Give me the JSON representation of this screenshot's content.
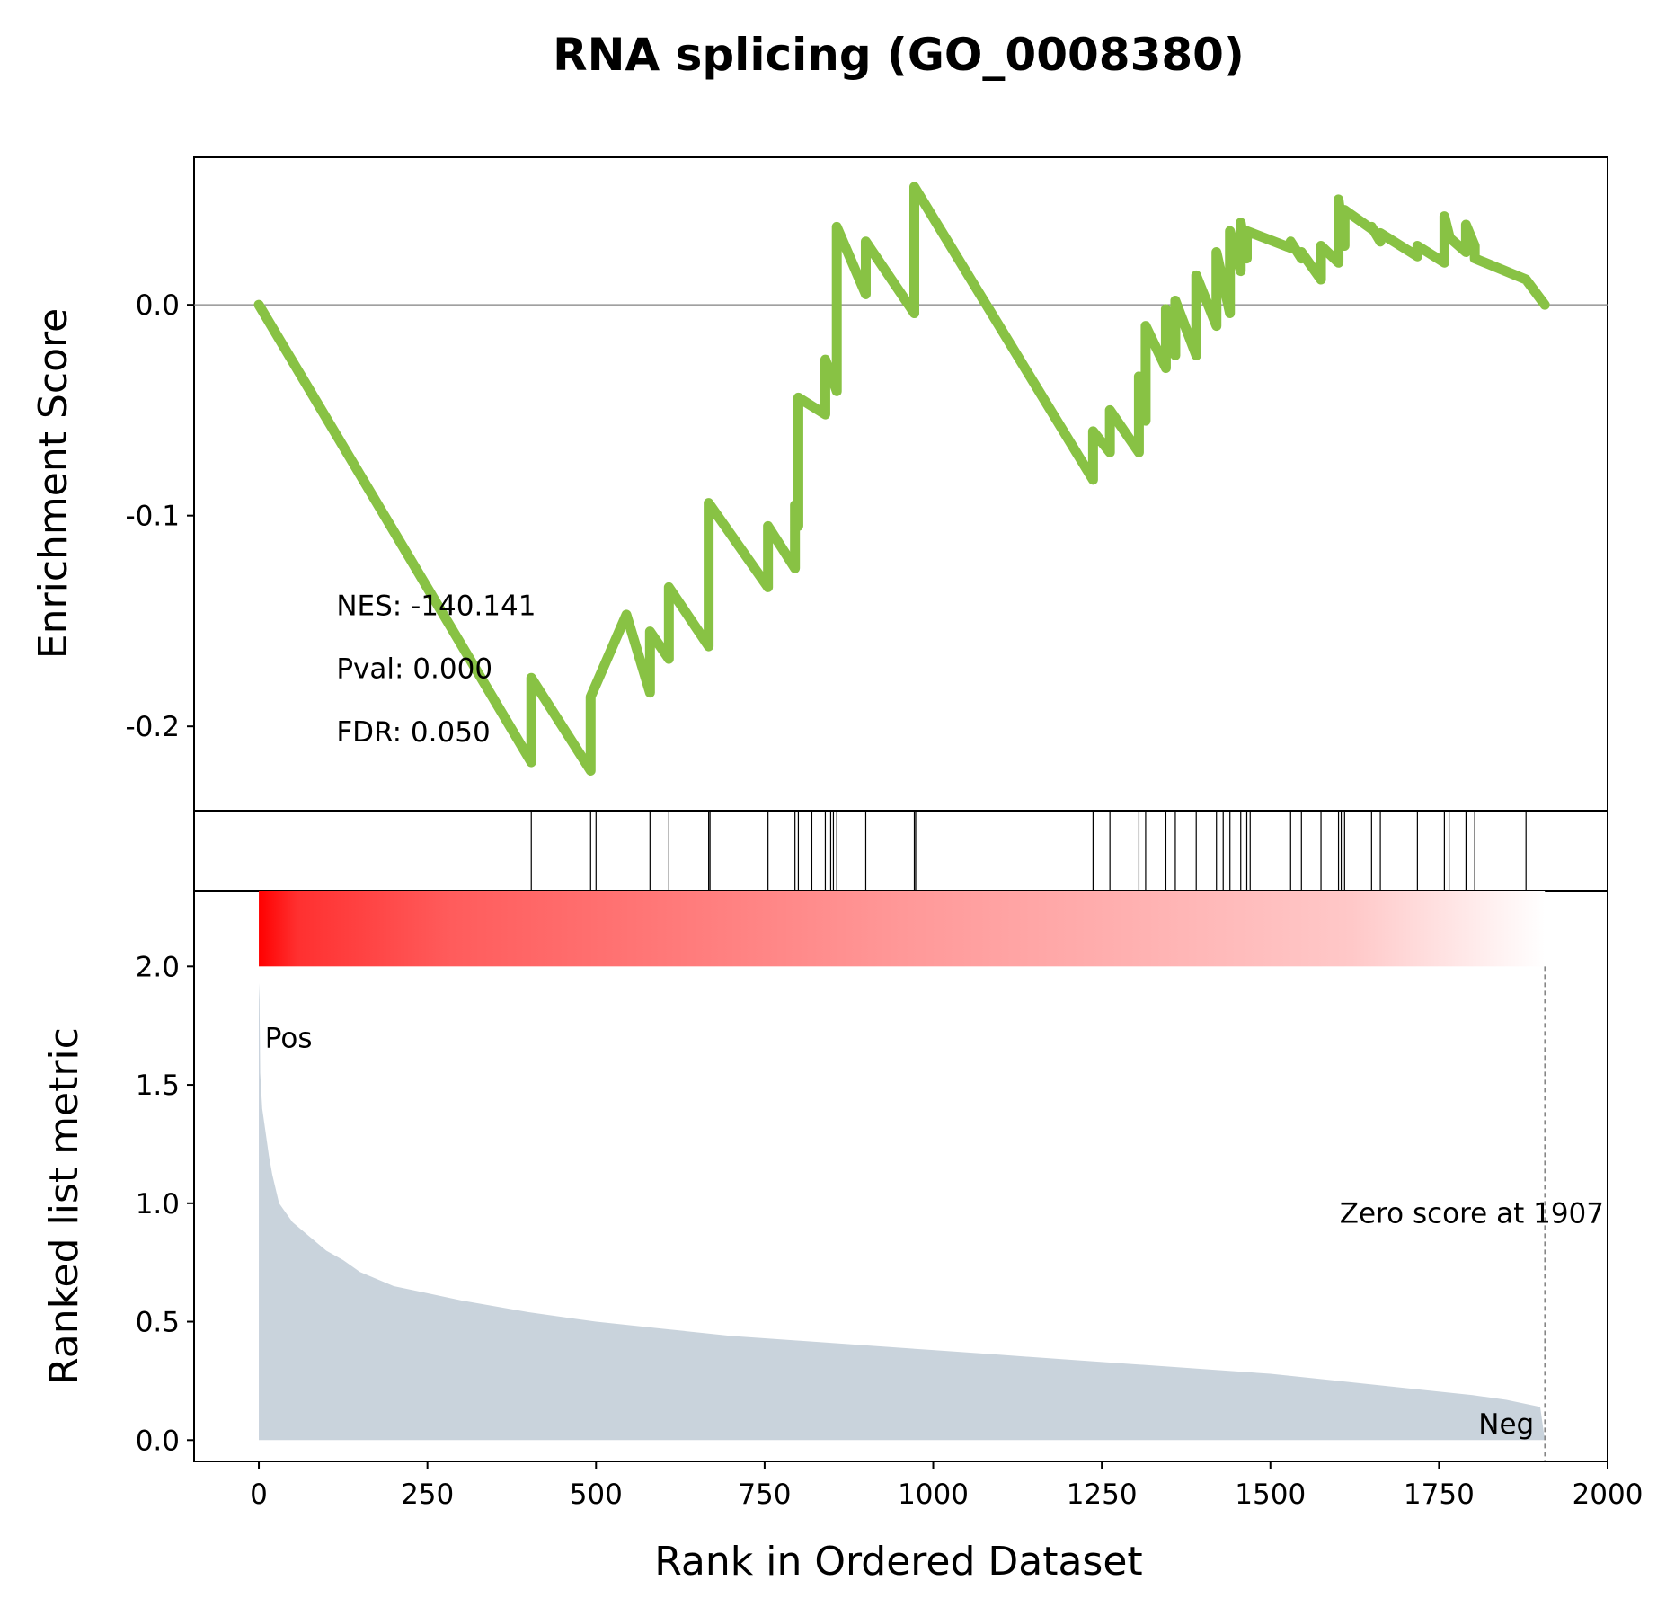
{
  "chart_data": {
    "title": "RNA splicing (GO_0008380)",
    "type": "line",
    "x_axis": {
      "label": "Rank in Ordered Dataset",
      "range": [
        -96,
        2000
      ],
      "ticks": [
        0,
        250,
        500,
        750,
        1000,
        1250,
        1500,
        1750,
        2000
      ],
      "tick_labels": [
        "0",
        "250",
        "500",
        "750",
        "1000",
        "1250",
        "1500",
        "1750",
        "2000"
      ]
    },
    "enrichment_panel": {
      "ylabel": "Enrichment Score",
      "ylim": [
        -0.24,
        0.07
      ],
      "yticks": [
        0.0,
        -0.1,
        -0.2
      ],
      "ytick_labels": [
        "0.0",
        "-0.1",
        "-0.2"
      ],
      "line_color": "#88c244",
      "zero_line_color": "#808080",
      "running_es": {
        "x": [
          0,
          404,
          404,
          492,
          492,
          545,
          545,
          580,
          580,
          608,
          608,
          667,
          667,
          755,
          755,
          795,
          795,
          800,
          800,
          840,
          840,
          857,
          857,
          900,
          900,
          972,
          972,
          1237,
          1237,
          1262,
          1262,
          1305,
          1305,
          1315,
          1315,
          1345,
          1345,
          1359,
          1359,
          1390,
          1390,
          1420,
          1420,
          1440,
          1440,
          1456,
          1456,
          1465,
          1465,
          1530,
          1530,
          1546,
          1546,
          1575,
          1575,
          1601,
          1601,
          1610,
          1610,
          1650,
          1650,
          1663,
          1663,
          1718,
          1718,
          1758,
          1758,
          1765,
          1765,
          1790,
          1790,
          1803,
          1803,
          1879,
          1879,
          1907
        ],
        "y": [
          0.0,
          -0.217,
          -0.177,
          -0.221,
          -0.186,
          -0.147,
          -0.147,
          -0.184,
          -0.155,
          -0.168,
          -0.134,
          -0.162,
          -0.094,
          -0.134,
          -0.105,
          -0.125,
          -0.095,
          -0.105,
          -0.044,
          -0.052,
          -0.026,
          -0.041,
          0.037,
          0.005,
          0.03,
          -0.004,
          0.056,
          -0.083,
          -0.06,
          -0.07,
          -0.05,
          -0.07,
          -0.034,
          -0.055,
          -0.01,
          -0.03,
          -0.002,
          -0.024,
          0.002,
          -0.024,
          0.014,
          -0.01,
          0.025,
          -0.004,
          0.035,
          0.016,
          0.039,
          0.022,
          0.035,
          0.027,
          0.03,
          0.022,
          0.025,
          0.012,
          0.028,
          0.02,
          0.05,
          0.028,
          0.045,
          0.036,
          0.037,
          0.03,
          0.034,
          0.023,
          0.028,
          0.02,
          0.042,
          0.033,
          0.032,
          0.025,
          0.038,
          0.028,
          0.022,
          0.012,
          0.012,
          0.0
        ]
      },
      "stats": [
        {
          "label": "NES: -140.141"
        },
        {
          "label": "Pval: 0.000"
        },
        {
          "label": "FDR: 0.050"
        }
      ]
    },
    "hits_panel": {
      "hit_positions": [
        404,
        492,
        500,
        580,
        608,
        667,
        669,
        755,
        795,
        800,
        820,
        840,
        848,
        852,
        857,
        900,
        972,
        974,
        1237,
        1262,
        1305,
        1315,
        1345,
        1359,
        1390,
        1420,
        1430,
        1440,
        1456,
        1465,
        1470,
        1530,
        1546,
        1575,
        1601,
        1605,
        1610,
        1650,
        1663,
        1718,
        1758,
        1765,
        1790,
        1803,
        1879
      ],
      "line_color": "#000000"
    },
    "rank_panel": {
      "ylabel": "Ranked list metric",
      "ylim": [
        -0.09,
        2.32
      ],
      "yticks": [
        0.0,
        0.5,
        1.0,
        1.5,
        2.0
      ],
      "ytick_labels": [
        "0.0",
        "0.5",
        "1.0",
        "1.5",
        "2.0"
      ],
      "fill_color": "#c9d3dc",
      "heatmap_start_color": "#ff0000",
      "heatmap_end_color": "#ffffff",
      "pos_label": "Pos",
      "pos_color": "#ff0000",
      "neg_label": "Neg",
      "neg_color": "#0000ff",
      "zero_score_label": "Zero score at 1907",
      "zero_score_rank": 1907,
      "ranked_metric": {
        "x": [
          0,
          1,
          2,
          5,
          10,
          15,
          20,
          25,
          30,
          40,
          50,
          75,
          100,
          125,
          150,
          175,
          200,
          250,
          300,
          400,
          500,
          600,
          700,
          800,
          900,
          1000,
          1100,
          1200,
          1300,
          1400,
          1500,
          1600,
          1700,
          1800,
          1850,
          1900,
          1907
        ],
        "y": [
          1.93,
          1.86,
          1.55,
          1.4,
          1.3,
          1.2,
          1.12,
          1.06,
          1.0,
          0.96,
          0.92,
          0.86,
          0.8,
          0.76,
          0.71,
          0.68,
          0.65,
          0.62,
          0.59,
          0.54,
          0.5,
          0.47,
          0.44,
          0.42,
          0.4,
          0.38,
          0.36,
          0.34,
          0.32,
          0.3,
          0.28,
          0.25,
          0.22,
          0.19,
          0.17,
          0.14,
          0.0
        ]
      }
    }
  }
}
